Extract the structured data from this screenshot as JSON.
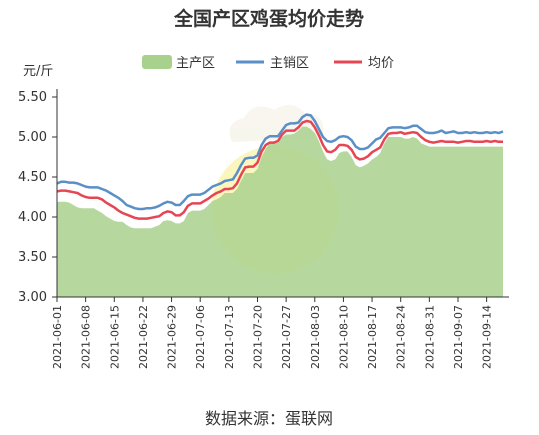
{
  "chart_data": {
    "type": "area",
    "title": "全国产区鸡蛋均价走势",
    "unit_label": "元/斤",
    "source_label": "数据来源：蛋联网",
    "ylim": [
      3.0,
      5.5
    ],
    "yticks": [
      "3.00",
      "3.50",
      "4.00",
      "4.50",
      "5.00",
      "5.50"
    ],
    "xtick_labels": [
      "2021-06-01",
      "2021-06-08",
      "2021-06-15",
      "2021-06-22",
      "2021-06-29",
      "2021-07-06",
      "2021-07-13",
      "2021-07-20",
      "2021-07-27",
      "2021-08-03",
      "2021-08-10",
      "2021-08-17",
      "2021-08-24",
      "2021-08-31",
      "2021-09-07",
      "2021-09-14"
    ],
    "x_start": "2021-06-01",
    "x_end": "2021-09-18",
    "series": [
      {
        "name": "主产区",
        "type": "area",
        "color": "#a9d18e",
        "values": [
          4.19,
          4.19,
          4.19,
          4.18,
          4.15,
          4.12,
          4.11,
          4.11,
          4.11,
          4.11,
          4.08,
          4.05,
          4.01,
          3.98,
          3.95,
          3.94,
          3.94,
          3.9,
          3.87,
          3.86,
          3.86,
          3.86,
          3.86,
          3.86,
          3.88,
          3.9,
          3.95,
          3.96,
          3.95,
          3.92,
          3.92,
          3.95,
          4.05,
          4.08,
          4.08,
          4.08,
          4.1,
          4.15,
          4.2,
          4.22,
          4.25,
          4.3,
          4.3,
          4.3,
          4.35,
          4.45,
          4.55,
          4.55,
          4.55,
          4.6,
          4.75,
          4.85,
          4.92,
          4.92,
          4.93,
          5.0,
          5.03,
          5.03,
          5.04,
          5.08,
          5.13,
          5.13,
          5.1,
          5.05,
          4.95,
          4.82,
          4.72,
          4.7,
          4.72,
          4.8,
          4.82,
          4.82,
          4.75,
          4.65,
          4.62,
          4.64,
          4.67,
          4.72,
          4.75,
          4.8,
          4.92,
          5.0,
          5.0,
          5.0,
          5.0,
          4.98,
          4.98,
          5.0,
          4.98,
          4.92,
          4.9,
          4.88,
          4.88,
          4.88,
          4.88,
          4.88,
          4.88,
          4.88,
          4.88,
          4.88,
          4.88,
          4.88,
          4.88,
          4.88,
          4.88,
          4.88,
          4.88,
          4.88,
          4.88,
          4.88
        ]
      },
      {
        "name": "主销区",
        "type": "line",
        "color": "#5b8fc7",
        "values": [
          4.42,
          4.44,
          4.44,
          4.43,
          4.43,
          4.42,
          4.4,
          4.38,
          4.37,
          4.37,
          4.37,
          4.35,
          4.33,
          4.3,
          4.27,
          4.24,
          4.2,
          4.15,
          4.13,
          4.11,
          4.1,
          4.1,
          4.11,
          4.11,
          4.12,
          4.14,
          4.17,
          4.19,
          4.18,
          4.15,
          4.15,
          4.2,
          4.26,
          4.28,
          4.28,
          4.28,
          4.3,
          4.34,
          4.38,
          4.4,
          4.42,
          4.45,
          4.46,
          4.47,
          4.55,
          4.65,
          4.73,
          4.74,
          4.74,
          4.77,
          4.9,
          4.98,
          5.01,
          5.01,
          5.01,
          5.08,
          5.15,
          5.17,
          5.17,
          5.18,
          5.25,
          5.28,
          5.27,
          5.2,
          5.1,
          5.0,
          4.95,
          4.94,
          4.96,
          5.0,
          5.01,
          5.0,
          4.96,
          4.88,
          4.85,
          4.85,
          4.87,
          4.92,
          4.97,
          4.99,
          5.05,
          5.11,
          5.12,
          5.12,
          5.12,
          5.11,
          5.12,
          5.14,
          5.14,
          5.1,
          5.06,
          5.05,
          5.05,
          5.06,
          5.08,
          5.05,
          5.06,
          5.07,
          5.05,
          5.05,
          5.06,
          5.05,
          5.06,
          5.05,
          5.05,
          5.06,
          5.05,
          5.06,
          5.05,
          5.07
        ]
      },
      {
        "name": "均价",
        "type": "line",
        "color": "#e64553",
        "values": [
          4.32,
          4.33,
          4.33,
          4.32,
          4.31,
          4.3,
          4.27,
          4.25,
          4.24,
          4.24,
          4.24,
          4.22,
          4.18,
          4.15,
          4.12,
          4.08,
          4.05,
          4.03,
          4.01,
          3.99,
          3.98,
          3.98,
          3.98,
          3.99,
          4.0,
          4.01,
          4.05,
          4.07,
          4.06,
          4.02,
          4.02,
          4.06,
          4.14,
          4.17,
          4.17,
          4.17,
          4.2,
          4.23,
          4.27,
          4.3,
          4.32,
          4.35,
          4.35,
          4.36,
          4.42,
          4.53,
          4.62,
          4.63,
          4.63,
          4.68,
          4.82,
          4.9,
          4.93,
          4.93,
          4.95,
          5.03,
          5.08,
          5.08,
          5.08,
          5.12,
          5.18,
          5.2,
          5.19,
          5.12,
          5.02,
          4.9,
          4.82,
          4.81,
          4.84,
          4.9,
          4.9,
          4.89,
          4.84,
          4.75,
          4.72,
          4.73,
          4.76,
          4.81,
          4.84,
          4.87,
          4.97,
          5.04,
          5.05,
          5.05,
          5.06,
          5.04,
          5.05,
          5.06,
          5.05,
          5.0,
          4.96,
          4.94,
          4.93,
          4.94,
          4.95,
          4.94,
          4.94,
          4.94,
          4.93,
          4.94,
          4.95,
          4.95,
          4.94,
          4.94,
          4.94,
          4.95,
          4.94,
          4.95,
          4.94,
          4.94
        ]
      }
    ],
    "grid": false,
    "legend_position": "top"
  }
}
